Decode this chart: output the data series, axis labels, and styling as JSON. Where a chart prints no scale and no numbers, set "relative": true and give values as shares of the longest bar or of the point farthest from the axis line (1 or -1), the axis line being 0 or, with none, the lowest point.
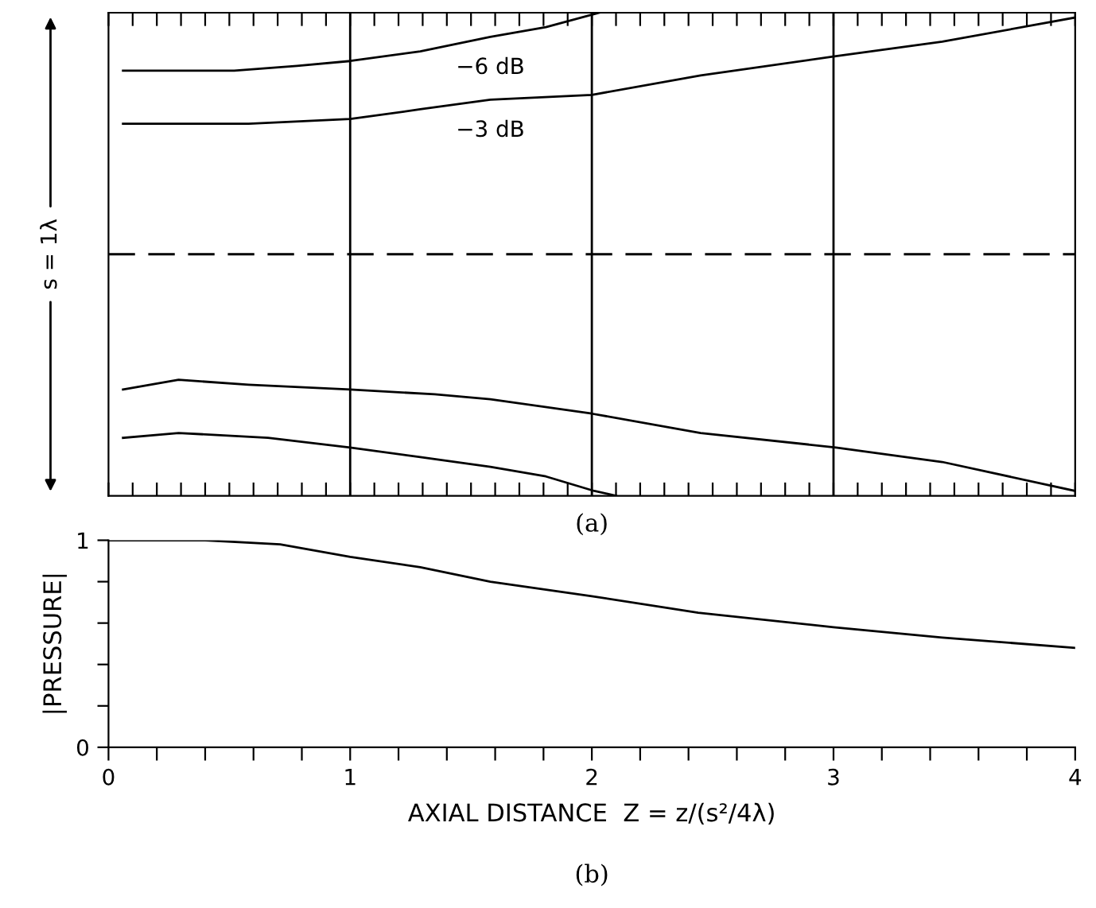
{
  "chart_data": [
    {
      "type": "line",
      "relative": true,
      "xlim": [
        0,
        4
      ],
      "xticks": [
        {
          "value": 0,
          "label": null
        },
        {
          "value": 0.1,
          "label": null
        },
        {
          "value": 0.2,
          "label": null
        },
        {
          "value": 0.3,
          "label": null
        },
        {
          "value": 0.4,
          "label": null
        },
        {
          "value": 0.5,
          "label": null
        },
        {
          "value": 0.6,
          "label": null
        },
        {
          "value": 0.7,
          "label": null
        },
        {
          "value": 0.8,
          "label": null
        },
        {
          "value": 0.9,
          "label": null
        },
        {
          "value": 1,
          "label": null
        },
        {
          "value": 1.1,
          "label": null
        },
        {
          "value": 1.2,
          "label": null
        },
        {
          "value": 1.3,
          "label": null
        },
        {
          "value": 1.4,
          "label": null
        },
        {
          "value": 1.5,
          "label": null
        },
        {
          "value": 1.6,
          "label": null
        },
        {
          "value": 1.7,
          "label": null
        },
        {
          "value": 1.8,
          "label": null
        },
        {
          "value": 1.9,
          "label": null
        },
        {
          "value": 2,
          "label": null
        },
        {
          "value": 2.1,
          "label": null
        },
        {
          "value": 2.2,
          "label": null
        },
        {
          "value": 2.3,
          "label": null
        },
        {
          "value": 2.4,
          "label": null
        },
        {
          "value": 2.5,
          "label": null
        },
        {
          "value": 2.6,
          "label": null
        },
        {
          "value": 2.7,
          "label": null
        },
        {
          "value": 2.8,
          "label": null
        },
        {
          "value": 2.9,
          "label": null
        },
        {
          "value": 3,
          "label": null
        },
        {
          "value": 3.1,
          "label": null
        },
        {
          "value": 3.2,
          "label": null
        },
        {
          "value": 3.3,
          "label": null
        },
        {
          "value": 3.4,
          "label": null
        },
        {
          "value": 3.5,
          "label": null
        },
        {
          "value": 3.6,
          "label": null
        },
        {
          "value": 3.7,
          "label": null
        },
        {
          "value": 3.8,
          "label": null
        },
        {
          "value": 3.9,
          "label": null
        },
        {
          "value": 4,
          "label": null
        }
      ],
      "tick_labels": false,
      "ylabel": "s = 1λ",
      "line_style": "solid",
      "marker": "none",
      "grid": false,
      "legend": false,
      "series": [
        {
          "name": "−6 dB",
          "color": "#000000",
          "x": [
            0.06,
            0.29,
            0.52,
            0.78,
            1.0,
            1.29,
            1.58,
            1.81,
            2.03
          ],
          "values": [
            0.88,
            0.88,
            0.88,
            0.89,
            0.9,
            0.92,
            0.95,
            0.97,
            1.0
          ]
        },
        {
          "name": "−3 dB",
          "color": "#000000",
          "x": [
            0.06,
            0.29,
            0.58,
            1.0,
            1.29,
            1.58,
            2.0,
            2.45,
            3.01,
            3.45,
            4.0
          ],
          "values": [
            0.77,
            0.77,
            0.77,
            0.78,
            0.8,
            0.82,
            0.83,
            0.87,
            0.91,
            0.94,
            0.99
          ]
        },
        {
          "color": "#000000",
          "x": [
            0.06,
            0.29,
            0.58,
            1.0,
            1.35,
            1.58,
            2.0,
            2.45,
            3.01,
            3.45,
            4.0
          ],
          "values": [
            0.22,
            0.24,
            0.23,
            0.22,
            0.21,
            0.2,
            0.17,
            0.13,
            0.1,
            0.07,
            0.01
          ]
        },
        {
          "color": "#000000",
          "x": [
            0.06,
            0.29,
            0.66,
            1.0,
            1.29,
            1.58,
            1.81,
            2.01,
            2.1
          ],
          "values": [
            0.12,
            0.13,
            0.12,
            0.1,
            0.08,
            0.06,
            0.04,
            0.01,
            0.0
          ]
        }
      ],
      "ref_lines": [
        {
          "axis": "y",
          "value": 0.5,
          "line_style": "dashed",
          "color": "#000000"
        },
        {
          "axis": "x",
          "value": 1,
          "color": "#000000"
        },
        {
          "axis": "x",
          "value": 2,
          "color": "#000000"
        },
        {
          "axis": "x",
          "value": 3,
          "color": "#000000"
        }
      ],
      "annotations": [
        "(a)"
      ]
    },
    {
      "type": "line",
      "xlim": [
        0,
        4
      ],
      "ylim": [
        0,
        1
      ],
      "xticks": [
        0,
        {
          "value": 0.2,
          "label": null
        },
        {
          "value": 0.4,
          "label": null
        },
        {
          "value": 0.6,
          "label": null
        },
        {
          "value": 0.8,
          "label": null
        },
        1,
        {
          "value": 1.2,
          "label": null
        },
        {
          "value": 1.4,
          "label": null
        },
        {
          "value": 1.6,
          "label": null
        },
        {
          "value": 1.8,
          "label": null
        },
        2,
        {
          "value": 2.2,
          "label": null
        },
        {
          "value": 2.4,
          "label": null
        },
        {
          "value": 2.6,
          "label": null
        },
        {
          "value": 2.8,
          "label": null
        },
        3,
        {
          "value": 3.2,
          "label": null
        },
        {
          "value": 3.4,
          "label": null
        },
        {
          "value": 3.6,
          "label": null
        },
        {
          "value": 3.8,
          "label": null
        },
        4
      ],
      "yticks": [
        0,
        {
          "value": 0.2,
          "label": null
        },
        {
          "value": 0.4,
          "label": null
        },
        {
          "value": 0.6,
          "label": null
        },
        {
          "value": 0.8,
          "label": null
        },
        1
      ],
      "xlabel": "AXIAL DISTANCE  Z = z/(s²/4λ)",
      "ylabel": "|PRESSURE|",
      "line_style": "solid",
      "marker": "none",
      "grid": false,
      "legend": false,
      "series": [
        {
          "color": "#000000",
          "x": [
            0,
            0.4,
            0.71,
            1.0,
            1.29,
            1.58,
            2.0,
            2.44,
            3.0,
            3.45,
            4.0
          ],
          "values": [
            1.0,
            1.0,
            0.98,
            0.92,
            0.87,
            0.8,
            0.73,
            0.65,
            0.58,
            0.53,
            0.48
          ]
        }
      ],
      "annotations": [
        "(b)"
      ]
    }
  ]
}
